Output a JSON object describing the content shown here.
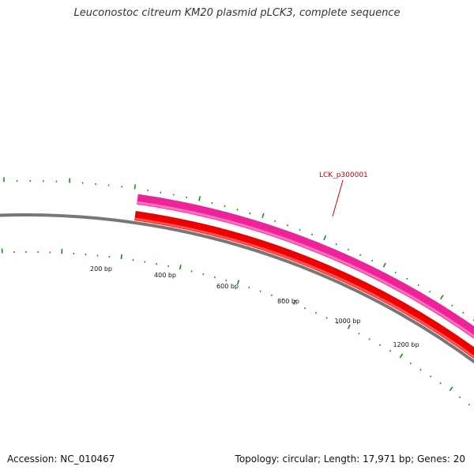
{
  "title": "Leuconostoc citreum KM20 plasmid pLCK3, complete sequence",
  "accession_text": "Accession: NC_010467",
  "summary_text": "Topology: circular; Length: 17,971 bp; Genes: 20",
  "plasmid_length_bp": 17971,
  "gene_count": 20,
  "ruler": {
    "labels": [
      "200 bp",
      "400 bp",
      "600 bp",
      "800 bp",
      "1000 bp",
      "1200 bp"
    ],
    "tick_color": "#228822"
  },
  "backbone_color": "#777777",
  "features": [
    {
      "id": "LCK_p300001",
      "label": "LCK_p300001",
      "color": "#ee2299",
      "kind": "gene"
    },
    {
      "id": "cds",
      "color": "#ee0000",
      "kind": "CDS"
    }
  ],
  "label_color": "#cc0000"
}
